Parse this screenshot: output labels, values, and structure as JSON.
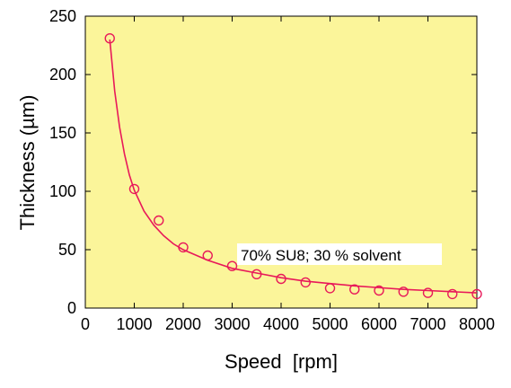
{
  "chart_data": {
    "type": "scatter",
    "xlabel": "Speed  [rpm]",
    "ylabel": "Thickness (µm)",
    "xlim": [
      0,
      8000
    ],
    "ylim": [
      0,
      250
    ],
    "x_ticks": [
      0,
      1000,
      2000,
      3000,
      4000,
      5000,
      6000,
      7000,
      8000
    ],
    "y_ticks": [
      0,
      50,
      100,
      150,
      200,
      250
    ],
    "plot_background": "#fbf59a",
    "series_color": "#e8195a",
    "annotation": "70% SU8; 30 % solvent",
    "grid": false,
    "series": [
      {
        "marker": "open-circle",
        "x": [
          500,
          1000,
          1500,
          2000,
          2500,
          3000,
          3500,
          4000,
          4500,
          5000,
          5500,
          6000,
          6500,
          7000,
          7500,
          8000
        ],
        "y": [
          231,
          102,
          75,
          52,
          45,
          36,
          29,
          25,
          22,
          17,
          16,
          15,
          14,
          13,
          12,
          12
        ]
      }
    ],
    "fit_curve": {
      "x": [
        500,
        600,
        700,
        800,
        900,
        1000,
        1200,
        1400,
        1600,
        1800,
        2000,
        2500,
        3000,
        3500,
        4000,
        4500,
        5000,
        5500,
        6000,
        6500,
        7000,
        7500,
        8000
      ],
      "y": [
        230,
        186,
        155,
        132,
        114,
        101,
        83,
        71,
        62,
        55,
        50,
        41,
        34,
        30,
        26,
        23,
        21,
        19,
        17.5,
        16,
        15,
        14,
        13
      ]
    }
  }
}
